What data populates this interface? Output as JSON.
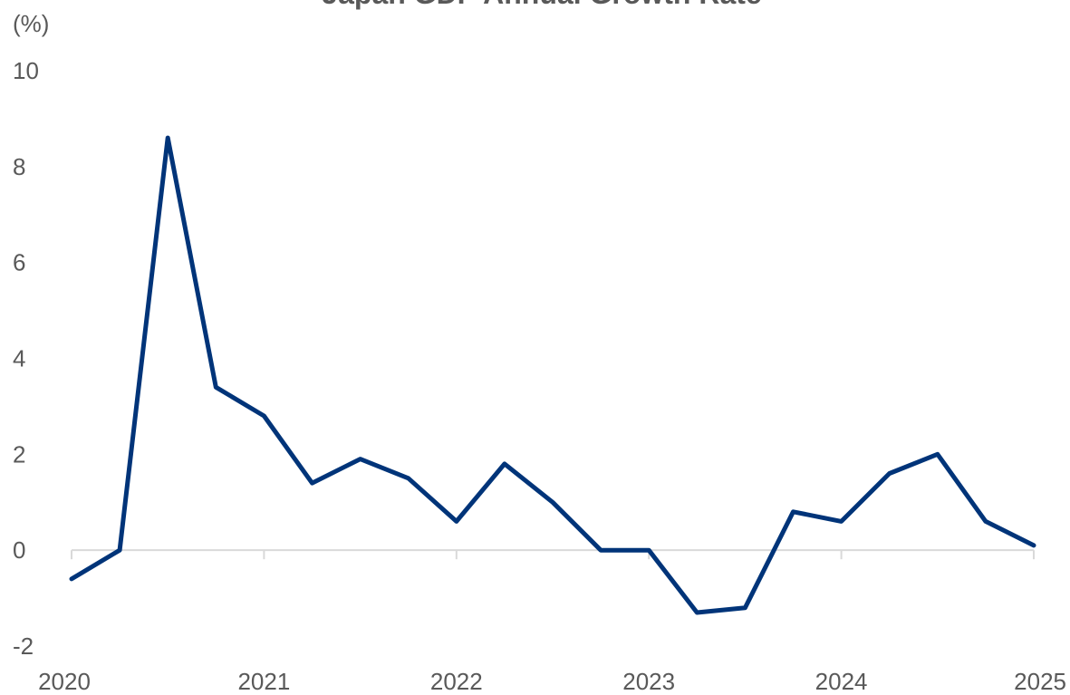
{
  "chart_data": {
    "type": "line",
    "title": "Japan GDP Annual Growth Rate",
    "ylabel": "(%)",
    "xlabel": "",
    "ylim": [
      -2,
      10
    ],
    "yticks": [
      "-2",
      "0",
      "2",
      "4",
      "6",
      "8",
      "10"
    ],
    "xlim": [
      2020,
      2025
    ],
    "xticks": [
      "2020",
      "2021",
      "2022",
      "2023",
      "2024",
      "2025"
    ],
    "grid": false,
    "series": [
      {
        "color": "#003479",
        "x": [
          2020.0,
          2020.25,
          2020.5,
          2020.75,
          2021.0,
          2021.25,
          2021.5,
          2021.75,
          2022.0,
          2022.25,
          2022.5,
          2022.75,
          2023.0,
          2023.25,
          2023.5,
          2023.75,
          2024.0,
          2024.25,
          2024.5,
          2024.75,
          2025.0
        ],
        "values": [
          -0.6,
          0.0,
          8.6,
          3.4,
          2.8,
          1.4,
          1.9,
          1.5,
          0.6,
          1.8,
          1.0,
          0.0,
          0.0,
          -1.3,
          -1.2,
          0.8,
          0.6,
          1.6,
          2.0,
          0.6,
          0.1
        ]
      }
    ]
  }
}
